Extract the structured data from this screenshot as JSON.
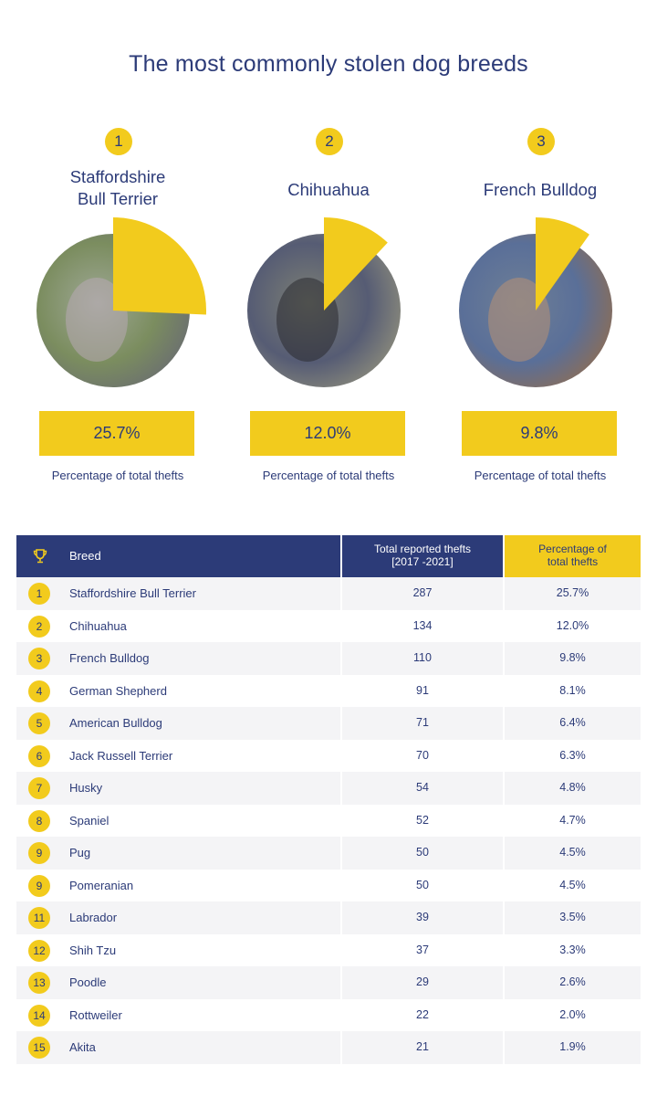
{
  "title": "The most commonly stolen dog breeds",
  "top3": [
    {
      "rank": "1",
      "name_lines": [
        "Staffordshire",
        "Bull Terrier"
      ],
      "percentage": "25.7%",
      "caption": "Percentage of total thefts",
      "share": 0.257,
      "photo": "staffordshire-bull-terrier-photo"
    },
    {
      "rank": "2",
      "name_lines": [
        "Chihuahua"
      ],
      "percentage": "12.0%",
      "caption": "Percentage of total thefts",
      "share": 0.12,
      "photo": "chihuahua-photo"
    },
    {
      "rank": "3",
      "name_lines": [
        "French Bulldog"
      ],
      "percentage": "9.8%",
      "caption": "Percentage of total thefts",
      "share": 0.098,
      "photo": "french-bulldog-photo"
    }
  ],
  "table": {
    "headers": {
      "icon": "trophy-icon",
      "breed": "Breed",
      "thefts_line1": "Total reported thefts",
      "thefts_line2": "[2017 -2021]",
      "pct_line1": "Percentage of",
      "pct_line2": "total thefts"
    },
    "rows": [
      {
        "rank": "1",
        "breed": "Staffordshire Bull Terrier",
        "thefts": "287",
        "pct": "25.7%"
      },
      {
        "rank": "2",
        "breed": "Chihuahua",
        "thefts": "134",
        "pct": "12.0%"
      },
      {
        "rank": "3",
        "breed": "French Bulldog",
        "thefts": "110",
        "pct": "9.8%"
      },
      {
        "rank": "4",
        "breed": "German Shepherd",
        "thefts": "91",
        "pct": "8.1%"
      },
      {
        "rank": "5",
        "breed": "American Bulldog",
        "thefts": "71",
        "pct": "6.4%"
      },
      {
        "rank": "6",
        "breed": "Jack Russell Terrier",
        "thefts": "70",
        "pct": "6.3%"
      },
      {
        "rank": "7",
        "breed": "Husky",
        "thefts": "54",
        "pct": "4.8%"
      },
      {
        "rank": "8",
        "breed": "Spaniel",
        "thefts": "52",
        "pct": "4.7%"
      },
      {
        "rank": "9",
        "breed": "Pug",
        "thefts": "50",
        "pct": "4.5%"
      },
      {
        "rank": "9",
        "breed": "Pomeranian",
        "thefts": "50",
        "pct": "4.5%"
      },
      {
        "rank": "11",
        "breed": "Labrador",
        "thefts": "39",
        "pct": "3.5%"
      },
      {
        "rank": "12",
        "breed": "Shih Tzu",
        "thefts": "37",
        "pct": "3.3%"
      },
      {
        "rank": "13",
        "breed": "Poodle",
        "thefts": "29",
        "pct": "2.6%"
      },
      {
        "rank": "14",
        "breed": "Rottweiler",
        "thefts": "22",
        "pct": "2.0%"
      },
      {
        "rank": "15",
        "breed": "Akita",
        "thefts": "21",
        "pct": "1.9%"
      }
    ]
  },
  "colors": {
    "navy": "#2c3b78",
    "yellow": "#f2cb1d",
    "row_alt": "#f4f4f6"
  },
  "chart_data": [
    {
      "type": "pie",
      "title": "Staffordshire Bull Terrier",
      "slices": [
        {
          "label": "Staffordshire Bull Terrier",
          "value": 25.7
        }
      ],
      "unit": "% of total thefts"
    },
    {
      "type": "pie",
      "title": "Chihuahua",
      "slices": [
        {
          "label": "Chihuahua",
          "value": 12.0
        }
      ],
      "unit": "% of total thefts"
    },
    {
      "type": "pie",
      "title": "French Bulldog",
      "slices": [
        {
          "label": "French Bulldog",
          "value": 9.8
        }
      ],
      "unit": "% of total thefts"
    },
    {
      "type": "table",
      "columns": [
        "Breed",
        "Total reported thefts [2017 -2021]",
        "Percentage of total thefts"
      ],
      "rows": [
        [
          "Staffordshire Bull Terrier",
          287,
          25.7
        ],
        [
          "Chihuahua",
          134,
          12.0
        ],
        [
          "French Bulldog",
          110,
          9.8
        ],
        [
          "German Shepherd",
          91,
          8.1
        ],
        [
          "American Bulldog",
          71,
          6.4
        ],
        [
          "Jack Russell Terrier",
          70,
          6.3
        ],
        [
          "Husky",
          54,
          4.8
        ],
        [
          "Spaniel",
          52,
          4.7
        ],
        [
          "Pug",
          50,
          4.5
        ],
        [
          "Pomeranian",
          50,
          4.5
        ],
        [
          "Labrador",
          39,
          3.5
        ],
        [
          "Shih Tzu",
          37,
          3.3
        ],
        [
          "Poodle",
          29,
          2.6
        ],
        [
          "Rottweiler",
          22,
          2.0
        ],
        [
          "Akita",
          21,
          1.9
        ]
      ]
    }
  ]
}
